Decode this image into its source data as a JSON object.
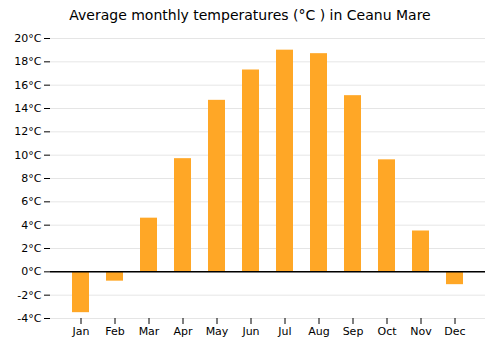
{
  "chart_data": {
    "type": "bar",
    "title": "Average monthly temperatures (°C ) in Ceanu Mare",
    "categories": [
      "Jan",
      "Feb",
      "Mar",
      "Apr",
      "May",
      "Jun",
      "Jul",
      "Aug",
      "Sep",
      "Oct",
      "Nov",
      "Dec"
    ],
    "values": [
      -3.5,
      -0.8,
      4.6,
      9.7,
      14.7,
      17.3,
      19.0,
      18.7,
      15.1,
      9.6,
      3.5,
      -1.1
    ],
    "color": "#FFA726",
    "ylim": [
      -4,
      20
    ],
    "yticks": [
      {
        "value": -4,
        "label": "-4°C"
      },
      {
        "value": -2,
        "label": "-2°C"
      },
      {
        "value": 0,
        "label": "0°C"
      },
      {
        "value": 2,
        "label": "2°C"
      },
      {
        "value": 4,
        "label": "4°C"
      },
      {
        "value": 6,
        "label": "6°C"
      },
      {
        "value": 8,
        "label": "8°C"
      },
      {
        "value": 10,
        "label": "10°C"
      },
      {
        "value": 12,
        "label": "12°C"
      },
      {
        "value": 14,
        "label": "14°C"
      },
      {
        "value": 16,
        "label": "16°C"
      },
      {
        "value": 18,
        "label": "18°C"
      },
      {
        "value": 20,
        "label": "20°C"
      }
    ],
    "grid": true
  }
}
